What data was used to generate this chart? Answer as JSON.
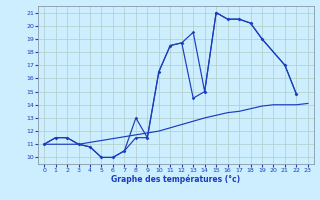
{
  "background_color": "#cceeff",
  "grid_color": "#aaddcc",
  "line_color": "#1a3ebd",
  "xlabel": "Graphe des températures (°c)",
  "xlim": [
    -0.5,
    23.5
  ],
  "ylim": [
    9.5,
    21.5
  ],
  "yticks": [
    10,
    11,
    12,
    13,
    14,
    15,
    16,
    17,
    18,
    19,
    20,
    21
  ],
  "xticks": [
    0,
    1,
    2,
    3,
    4,
    5,
    6,
    7,
    8,
    9,
    10,
    11,
    12,
    13,
    14,
    15,
    16,
    17,
    18,
    19,
    20,
    21,
    22,
    23
  ],
  "line1_x": [
    0,
    1,
    2,
    3,
    4,
    5,
    6,
    7,
    8,
    9,
    10,
    11,
    12,
    13,
    14,
    15,
    16,
    17,
    18,
    19,
    21,
    22
  ],
  "line1_y": [
    11.0,
    11.5,
    11.5,
    11.0,
    10.8,
    10.0,
    10.0,
    10.5,
    13.0,
    11.5,
    16.5,
    18.5,
    18.7,
    19.5,
    15.0,
    21.0,
    20.5,
    20.5,
    20.2,
    19.0,
    17.0,
    14.8
  ],
  "line2_x": [
    0,
    1,
    2,
    3,
    4,
    5,
    6,
    7,
    8,
    9,
    10,
    11,
    12,
    13,
    14,
    15,
    16,
    17,
    18,
    19,
    21,
    22
  ],
  "line2_y": [
    11.0,
    11.5,
    11.5,
    11.0,
    10.8,
    10.0,
    10.0,
    10.5,
    11.5,
    11.5,
    16.5,
    18.5,
    18.7,
    14.5,
    15.0,
    21.0,
    20.5,
    20.5,
    20.2,
    19.0,
    17.0,
    14.8
  ],
  "line3_x": [
    0,
    3,
    10,
    14,
    15,
    16,
    17,
    18,
    19,
    20,
    21,
    22,
    23
  ],
  "line3_y": [
    11.0,
    11.0,
    12.0,
    13.0,
    13.2,
    13.4,
    13.5,
    13.7,
    13.9,
    14.0,
    14.0,
    14.0,
    14.1
  ]
}
